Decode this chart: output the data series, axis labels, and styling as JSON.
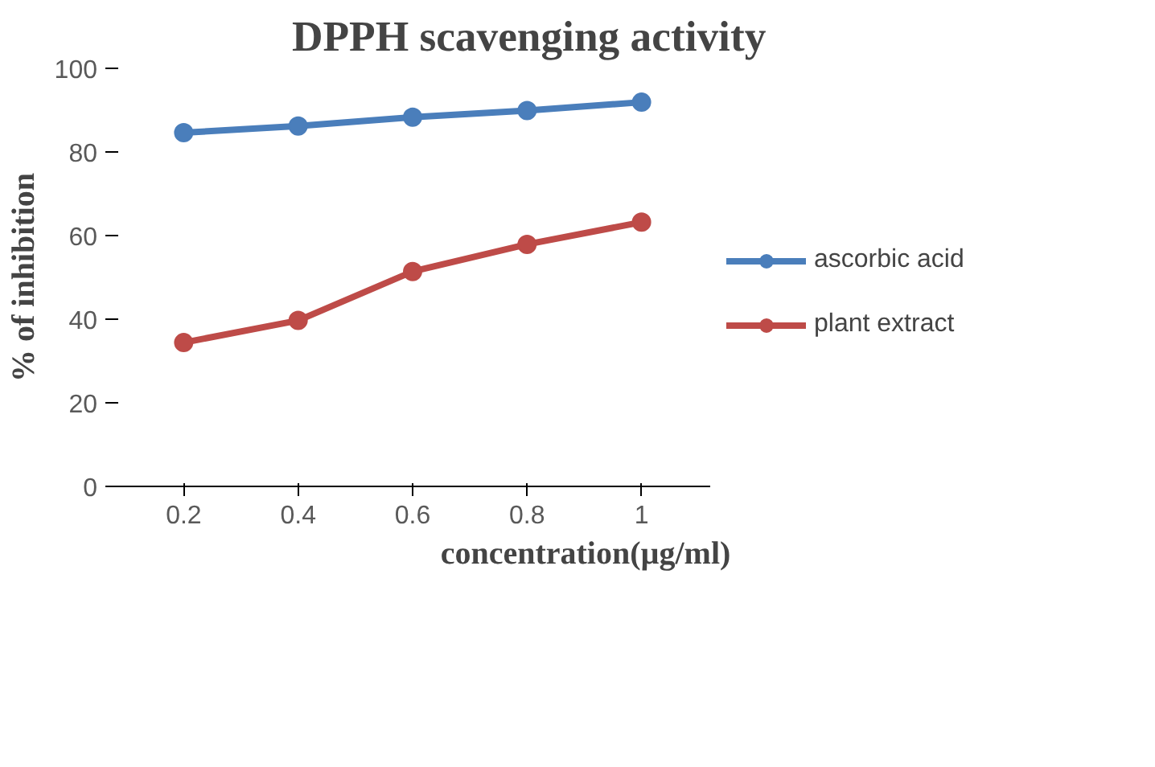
{
  "chart_data": {
    "type": "line",
    "title": "DPPH scavenging activity",
    "xlabel": "concentration(µg/ml)",
    "ylabel": "% of inhibition",
    "categories": [
      "0.2",
      "0.4",
      "0.6",
      "0.8",
      "1"
    ],
    "series": [
      {
        "name": "ascorbic acid",
        "color": "#4a7ebb",
        "values": [
          84.6,
          86.2,
          88.3,
          89.9,
          91.9
        ]
      },
      {
        "name": "plant extract",
        "color": "#be4b48",
        "values": [
          34.4,
          39.7,
          51.4,
          57.9,
          63.2
        ]
      }
    ],
    "ylim": [
      0,
      100
    ],
    "yticks": [
      0,
      20,
      40,
      60,
      80,
      100
    ],
    "grid": false,
    "legend": "right",
    "marker": "circle",
    "line_style": "solid"
  }
}
